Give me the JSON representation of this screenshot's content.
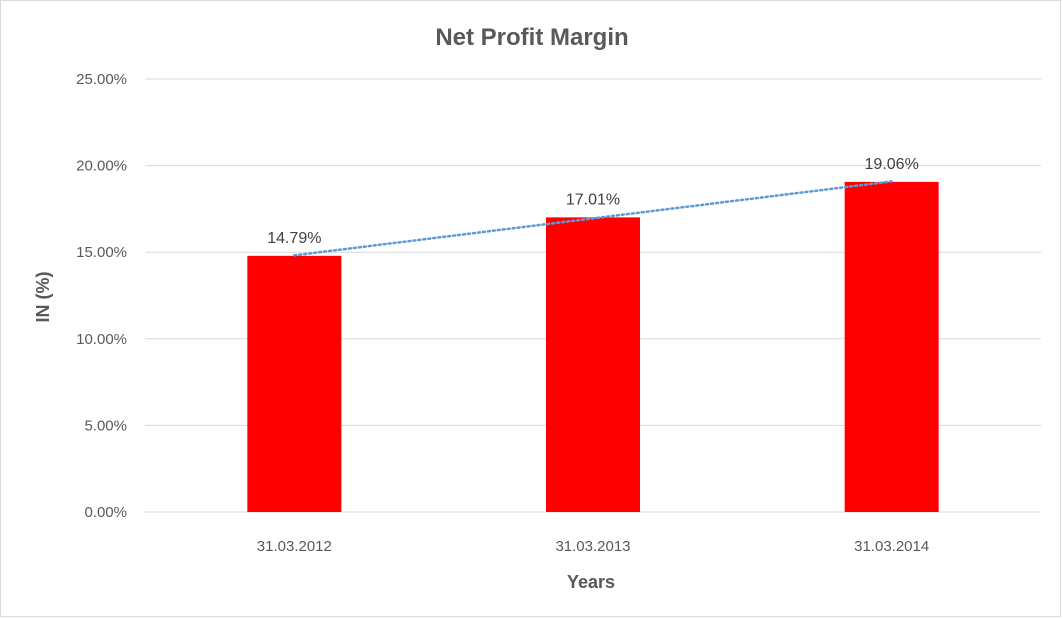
{
  "chart_data": {
    "type": "bar",
    "title": "Net Profit Margin",
    "xlabel": "Years",
    "ylabel": "IN (%)",
    "categories": [
      "31.03.2012",
      "31.03.2013",
      "31.03.2014"
    ],
    "values": [
      14.79,
      17.01,
      19.06
    ],
    "data_labels": [
      "14.79%",
      "17.01%",
      "19.06%"
    ],
    "ylim": [
      0,
      25
    ],
    "y_ticks": [
      0,
      5,
      10,
      15,
      20,
      25
    ],
    "y_tick_labels": [
      "0.00%",
      "5.00%",
      "10.00%",
      "15.00%",
      "20.00%",
      "25.00%"
    ],
    "grid": true,
    "legend": "none",
    "trendline": "linear",
    "colors": {
      "bar": "#ff0000",
      "trendline": "#5b9bd5",
      "grid": "#d9d9d9",
      "text": "#595959"
    }
  }
}
